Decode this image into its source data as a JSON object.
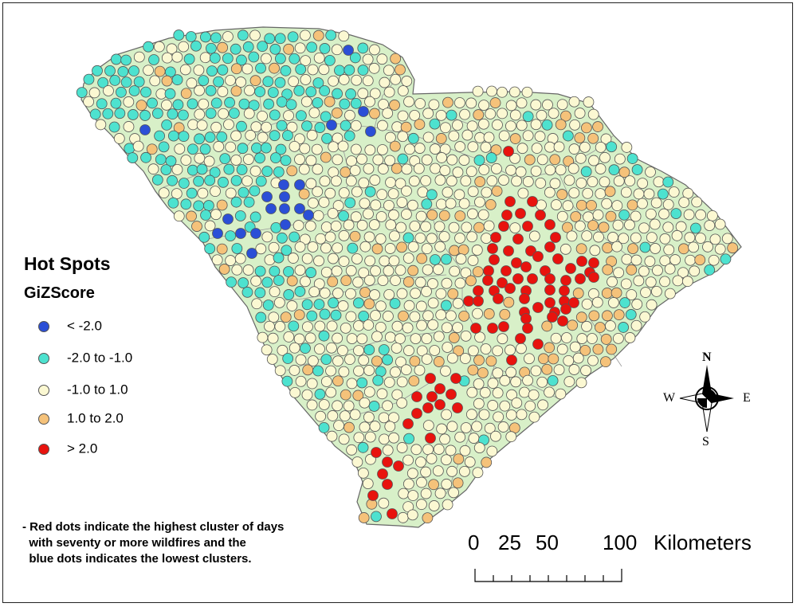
{
  "legend": {
    "title": "Hot Spots",
    "field": "GiZScore",
    "classes": [
      {
        "label": "< -2.0",
        "color": "#2b4fd6"
      },
      {
        "label": "-2.0 to -1.0",
        "color": "#4de2cf"
      },
      {
        "label": "-1.0 to 1.0",
        "color": "#fbf8d2"
      },
      {
        "label": "1.0 to 2.0",
        "color": "#f5c27a"
      },
      {
        "label": "> 2.0",
        "color": "#e8130e"
      }
    ]
  },
  "note": "- Red dots indicate the highest cluster of days\n  with seventy or more wildfires and the\n  blue dots indicates the lowest clusters.",
  "scale_bar": {
    "ticks": [
      "0",
      "25",
      "50",
      "100"
    ],
    "unit": "Kilometers"
  },
  "compass": {
    "north": "N",
    "south": "S",
    "east": "E",
    "west": "W"
  },
  "colors": {
    "land": "#d8f0c8",
    "border": "#666666",
    "low": "#2b4fd6",
    "mid_low": "#4de2cf",
    "neutral": "#fbf8d2",
    "mid_high": "#f5c27a",
    "high": "#e8130e"
  }
}
